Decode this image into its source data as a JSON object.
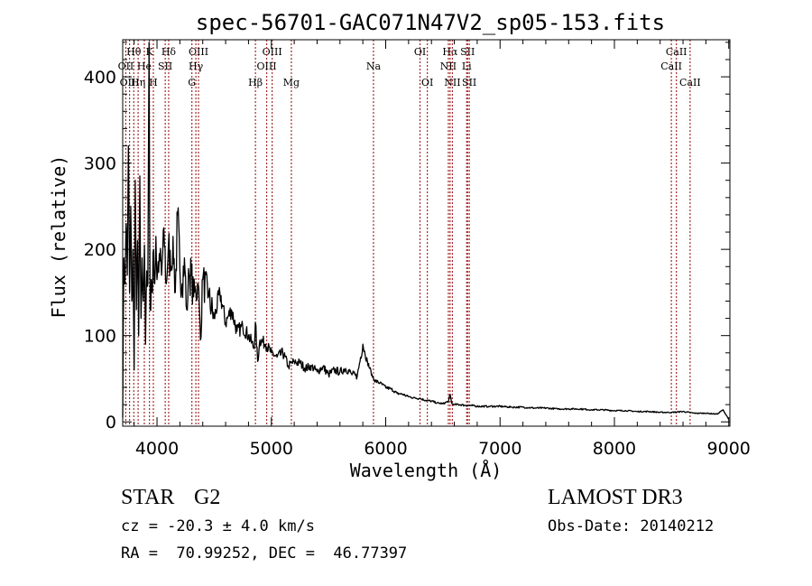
{
  "chart_data": {
    "type": "line",
    "title": "spec-56701-GAC071N47V2_sp05-153.fits",
    "xlabel": "Wavelength (Å)",
    "ylabel": "Flux (relative)",
    "xlim": [
      3700,
      9010
    ],
    "ylim": [
      -5,
      443
    ],
    "xticks": [
      4000,
      5000,
      6000,
      7000,
      8000,
      9000
    ],
    "xtick_labels": [
      "4000",
      "5000",
      "6000",
      "7000",
      "8000",
      "9000"
    ],
    "yticks": [
      0,
      100,
      200,
      300,
      400
    ],
    "ytick_labels": [
      "0",
      "100",
      "200",
      "300",
      "400"
    ],
    "grid": false,
    "legend": "none",
    "series": [
      {
        "name": "spectrum",
        "color": "#000000",
        "x": [
          3700,
          3710,
          3720,
          3730,
          3740,
          3750,
          3760,
          3770,
          3780,
          3790,
          3800,
          3810,
          3820,
          3830,
          3840,
          3850,
          3860,
          3870,
          3880,
          3890,
          3900,
          3910,
          3920,
          3930,
          3940,
          3950,
          3960,
          3970,
          3980,
          3990,
          4000,
          4020,
          4040,
          4060,
          4080,
          4100,
          4120,
          4140,
          4160,
          4180,
          4200,
          4220,
          4240,
          4260,
          4280,
          4300,
          4320,
          4340,
          4360,
          4380,
          4400,
          4450,
          4500,
          4550,
          4600,
          4650,
          4700,
          4750,
          4800,
          4850,
          4860,
          4880,
          4900,
          4950,
          5000,
          5050,
          5100,
          5150,
          5200,
          5250,
          5300,
          5350,
          5400,
          5450,
          5500,
          5550,
          5600,
          5650,
          5700,
          5750,
          5800,
          5820,
          5840,
          5860,
          5880,
          5900,
          5950,
          6000,
          6050,
          6100,
          6150,
          6200,
          6250,
          6300,
          6350,
          6400,
          6450,
          6500,
          6550,
          6563,
          6580,
          6600,
          6650,
          6700,
          6750,
          6800,
          6900,
          7000,
          7100,
          7200,
          7300,
          7400,
          7500,
          7600,
          7700,
          7800,
          7900,
          8000,
          8100,
          8200,
          8300,
          8400,
          8500,
          8600,
          8700,
          8800,
          8900,
          8950,
          9000
        ],
        "y": [
          5,
          190,
          160,
          230,
          170,
          320,
          150,
          250,
          140,
          200,
          60,
          280,
          130,
          210,
          100,
          285,
          120,
          190,
          140,
          205,
          90,
          175,
          160,
          440,
          130,
          165,
          150,
          200,
          160,
          215,
          165,
          195,
          170,
          225,
          160,
          205,
          175,
          215,
          150,
          240,
          175,
          160,
          190,
          130,
          170,
          170,
          145,
          150,
          160,
          95,
          165,
          145,
          120,
          150,
          115,
          130,
          105,
          110,
          100,
          85,
          115,
          70,
          95,
          90,
          80,
          75,
          80,
          65,
          70,
          68,
          62,
          65,
          58,
          64,
          55,
          60,
          58,
          62,
          56,
          52,
          90,
          78,
          70,
          62,
          55,
          48,
          45,
          40,
          38,
          33,
          32,
          29,
          28,
          27,
          25,
          24,
          22,
          21,
          24,
          32,
          21,
          20,
          20,
          19,
          19,
          18,
          18,
          18,
          17,
          17,
          16,
          16,
          15,
          15,
          15,
          14,
          14,
          13,
          13,
          12,
          12,
          11,
          11,
          12,
          10,
          10,
          9,
          14,
          3
        ]
      }
    ],
    "line_markers": [
      {
        "label": "Hθ",
        "wavelength": 3797,
        "row": 1
      },
      {
        "label": "OII",
        "wavelength": 3727,
        "row": 2
      },
      {
        "label": "OIII",
        "wavelength": 3760,
        "row": 3
      },
      {
        "label": "He",
        "wavelength": 3889,
        "row": 2
      },
      {
        "label": "Hη",
        "wavelength": 3835,
        "row": 3
      },
      {
        "label": "K",
        "wavelength": 3934,
        "row": 1
      },
      {
        "label": "H",
        "wavelength": 3968,
        "row": 3
      },
      {
        "label": "Hδ",
        "wavelength": 4102,
        "row": 1
      },
      {
        "label": "SII",
        "wavelength": 4072,
        "row": 2
      },
      {
        "label": "OIII",
        "wavelength": 4363,
        "row": 1
      },
      {
        "label": "Hγ",
        "wavelength": 4340,
        "row": 2
      },
      {
        "label": "G",
        "wavelength": 4305,
        "row": 3
      },
      {
        "label": "OIII",
        "wavelength": 5007,
        "row": 1
      },
      {
        "label": "OIII",
        "wavelength": 4959,
        "row": 2
      },
      {
        "label": "Hβ",
        "wavelength": 4861,
        "row": 3
      },
      {
        "label": "Mg",
        "wavelength": 5175,
        "row": 3
      },
      {
        "label": "Na",
        "wavelength": 5893,
        "row": 2
      },
      {
        "label": "OI",
        "wavelength": 6300,
        "row": 1
      },
      {
        "label": "OI",
        "wavelength": 6364,
        "row": 3
      },
      {
        "label": "Hα",
        "wavelength": 6563,
        "row": 1
      },
      {
        "label": "SII",
        "wavelength": 6716,
        "row": 1
      },
      {
        "label": "NII",
        "wavelength": 6548,
        "row": 2
      },
      {
        "label": "Li",
        "wavelength": 6708,
        "row": 2
      },
      {
        "label": "NII",
        "wavelength": 6583,
        "row": 3
      },
      {
        "label": "SII",
        "wavelength": 6731,
        "row": 3
      },
      {
        "label": "CaII",
        "wavelength": 8542,
        "row": 1
      },
      {
        "label": "CaII",
        "wavelength": 8498,
        "row": 2
      },
      {
        "label": "CaII",
        "wavelength": 8662,
        "row": 3
      }
    ],
    "marker_color": "#a52a2a"
  },
  "info": {
    "object_class": "STAR",
    "subclass": "G2",
    "survey": "LAMOST DR3",
    "redshift_line": "cz = -20.3 ± 4.0 km/s",
    "obs_date_line": "Obs-Date: 20140212",
    "coords_line": "RA =  70.99252, DEC =  46.77397"
  }
}
